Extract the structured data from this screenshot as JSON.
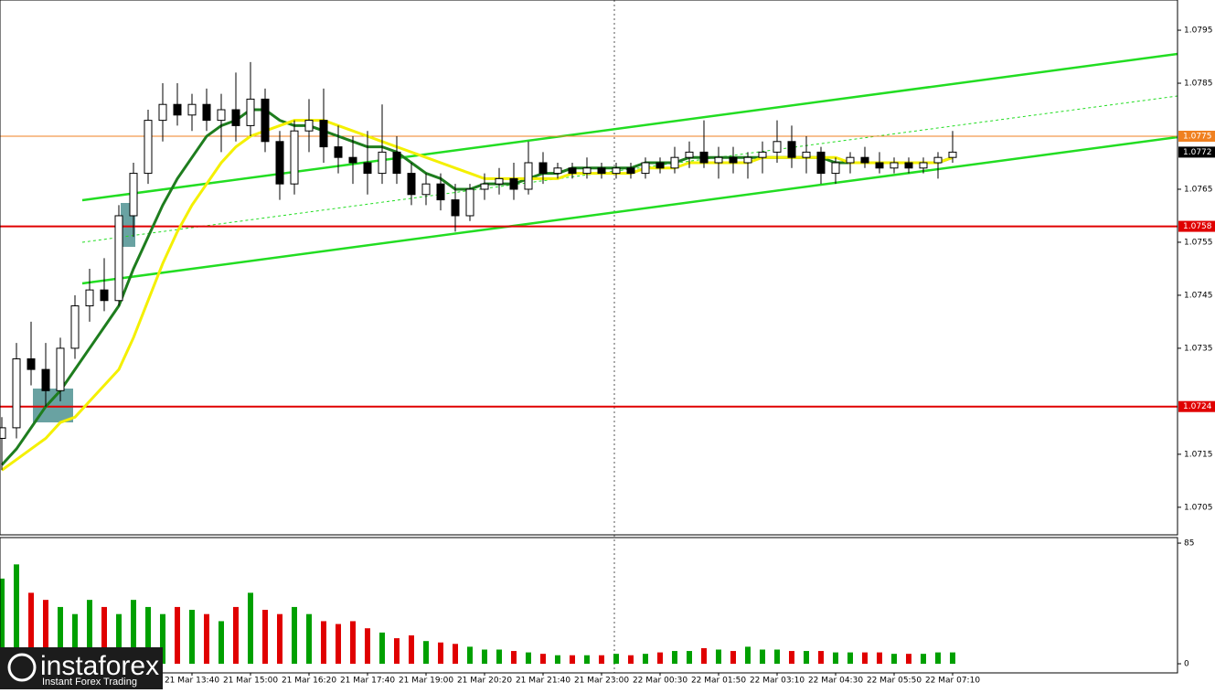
{
  "chart_data": {
    "type": "candlestick",
    "categories": [
      null,
      null,
      null,
      null,
      null,
      null,
      null,
      null,
      null,
      null,
      null,
      null,
      null,
      "21 Mar 13:40",
      null,
      null,
      null,
      "21 Mar 15:00",
      null,
      null,
      null,
      "21 Mar 16:20",
      null,
      null,
      null,
      "21 Mar 17:40",
      null,
      null,
      null,
      "21 Mar 19:00",
      null,
      null,
      null,
      "21 Mar 20:20",
      null,
      null,
      null,
      "21 Mar 21:40",
      null,
      null,
      null,
      "21 Mar 23:00",
      null,
      null,
      null,
      "22 Mar 00:30",
      null,
      null,
      null,
      "22 Mar 01:50",
      null,
      null,
      null,
      "22 Mar 03:10",
      null,
      null,
      null,
      "22 Mar 04:30",
      null,
      null,
      null,
      "22 Mar 05:50",
      null,
      null,
      null,
      "22 Mar 07:10"
    ],
    "open": [
      1.0718,
      1.072,
      1.0733,
      1.0731,
      1.0727,
      1.0735,
      1.0743,
      1.0746,
      1.0744,
      1.076,
      1.0768,
      1.0778,
      1.0781,
      1.0779,
      1.0781,
      1.0778,
      1.078,
      1.0777,
      1.0782,
      1.0774,
      1.0766,
      1.0776,
      1.0778,
      1.0773,
      1.0771,
      1.077,
      1.0768,
      1.0772,
      1.0768,
      1.0764,
      1.0766,
      1.0763,
      1.076,
      1.0765,
      1.0766,
      1.0767,
      1.0765,
      1.077,
      1.0768,
      1.0769,
      1.0768,
      1.0769,
      1.0768,
      1.0769,
      1.0768,
      1.077,
      1.0769,
      1.0771,
      1.0772,
      1.077,
      1.0771,
      1.077,
      1.0771,
      1.0772,
      1.0774,
      1.0771,
      1.0772,
      1.0768,
      1.077,
      1.0771,
      1.077,
      1.0769,
      1.077,
      1.0769,
      1.077,
      1.0771
    ],
    "high": [
      1.0722,
      1.0736,
      1.074,
      1.0736,
      1.0737,
      1.0745,
      1.075,
      1.0752,
      1.0762,
      1.077,
      1.078,
      1.0785,
      1.0785,
      1.0783,
      1.0784,
      1.0783,
      1.0787,
      1.0789,
      1.0784,
      1.0776,
      1.0778,
      1.0782,
      1.0784,
      1.0777,
      1.0775,
      1.0776,
      1.0781,
      1.0775,
      1.077,
      1.0768,
      1.0768,
      1.0766,
      1.0766,
      1.0768,
      1.0769,
      1.077,
      1.0774,
      1.0772,
      1.077,
      1.077,
      1.0771,
      1.077,
      1.077,
      1.077,
      1.0771,
      1.0771,
      1.0773,
      1.0774,
      1.0778,
      1.0773,
      1.0773,
      1.0772,
      1.0774,
      1.0778,
      1.0777,
      1.0775,
      1.0773,
      1.0771,
      1.0772,
      1.0773,
      1.0772,
      1.0771,
      1.0771,
      1.0771,
      1.0772,
      1.0776
    ],
    "low": [
      1.0712,
      1.0718,
      1.0728,
      1.0724,
      1.0725,
      1.0733,
      1.074,
      1.0742,
      1.0743,
      1.0756,
      1.0766,
      1.0774,
      1.0777,
      1.0776,
      1.0776,
      1.0772,
      1.0774,
      1.0775,
      1.0772,
      1.0763,
      1.0764,
      1.0772,
      1.077,
      1.0768,
      1.0766,
      1.0764,
      1.0766,
      1.0766,
      1.0762,
      1.0762,
      1.0761,
      1.0757,
      1.0759,
      1.0763,
      1.0764,
      1.0763,
      1.0764,
      1.0766,
      1.0767,
      1.0767,
      1.0767,
      1.0767,
      1.0767,
      1.0767,
      1.0767,
      1.0768,
      1.0768,
      1.0769,
      1.0769,
      1.0767,
      1.0768,
      1.0767,
      1.0768,
      1.077,
      1.0769,
      1.0768,
      1.0766,
      1.0766,
      1.0768,
      1.0769,
      1.0768,
      1.0768,
      1.0768,
      1.0768,
      1.0767,
      1.077
    ],
    "close": [
      1.072,
      1.0733,
      1.0731,
      1.0727,
      1.0735,
      1.0743,
      1.0746,
      1.0744,
      1.076,
      1.0768,
      1.0778,
      1.0781,
      1.0779,
      1.0781,
      1.0778,
      1.078,
      1.0777,
      1.0782,
      1.0774,
      1.0766,
      1.0776,
      1.0778,
      1.0773,
      1.0771,
      1.077,
      1.0768,
      1.0772,
      1.0768,
      1.0764,
      1.0766,
      1.0763,
      1.076,
      1.0765,
      1.0766,
      1.0767,
      1.0765,
      1.077,
      1.0768,
      1.0769,
      1.0768,
      1.0769,
      1.0768,
      1.0769,
      1.0768,
      1.077,
      1.0769,
      1.0771,
      1.0772,
      1.077,
      1.0771,
      1.077,
      1.0771,
      1.0772,
      1.0774,
      1.0771,
      1.0772,
      1.0768,
      1.077,
      1.0771,
      1.077,
      1.0769,
      1.077,
      1.0769,
      1.077,
      1.0771,
      1.0772
    ],
    "series": [
      {
        "color": "#1e7d1e",
        "values": [
          1.0713,
          1.0716,
          1.072,
          1.0724,
          1.0727,
          1.0731,
          1.0735,
          1.0739,
          1.0743,
          1.075,
          1.0756,
          1.0762,
          1.0767,
          1.0771,
          1.0775,
          1.0777,
          1.0778,
          1.078,
          1.078,
          1.0778,
          1.0777,
          1.0777,
          1.0776,
          1.0775,
          1.0774,
          1.0773,
          1.0773,
          1.0772,
          1.077,
          1.0768,
          1.0767,
          1.0765,
          1.0765,
          1.0766,
          1.0766,
          1.0766,
          1.0767,
          1.0768,
          1.0768,
          1.0769,
          1.0769,
          1.0769,
          1.0769,
          1.0769,
          1.077,
          1.077,
          1.077,
          1.0771,
          1.0771,
          1.0771,
          1.0771,
          1.0771,
          1.0771,
          1.0771,
          1.0771,
          1.0771,
          1.0771,
          1.077,
          1.077,
          1.077,
          1.077,
          1.077,
          1.077,
          1.077,
          1.077,
          1.0771
        ]
      },
      {
        "color": "#f4f000",
        "values": [
          1.0712,
          1.0714,
          1.0716,
          1.0718,
          1.0721,
          1.0722,
          1.0725,
          1.0728,
          1.0731,
          1.0737,
          1.0744,
          1.0751,
          1.0757,
          1.0762,
          1.0766,
          1.077,
          1.0773,
          1.0775,
          1.0776,
          1.0777,
          1.0778,
          1.0778,
          1.0778,
          1.0777,
          1.0776,
          1.0775,
          1.0774,
          1.0773,
          1.0772,
          1.0771,
          1.077,
          1.0769,
          1.0768,
          1.0767,
          1.0767,
          1.0767,
          1.0767,
          1.0767,
          1.0767,
          1.0768,
          1.0768,
          1.0768,
          1.0768,
          1.0768,
          1.0769,
          1.0769,
          1.0769,
          1.077,
          1.077,
          1.077,
          1.077,
          1.077,
          1.0771,
          1.0771,
          1.0771,
          1.0771,
          1.0771,
          1.0771,
          1.077,
          1.077,
          1.077,
          1.077,
          1.077,
          1.077,
          1.077,
          1.0771
        ]
      }
    ],
    "ylim": [
      1.06998,
      1.08007
    ],
    "yticks": [
      1.0795,
      1.0785,
      1.0765,
      1.0755,
      1.0745,
      1.0735,
      1.0715,
      1.0705
    ],
    "price_levels": [
      {
        "value": 1.0775,
        "color": "#f08020"
      },
      {
        "value": 1.0758,
        "color": "#e00000"
      },
      {
        "value": 1.0724,
        "color": "#e00000"
      }
    ],
    "current_price": 1.0772,
    "candle_colors": {
      "up": "#ffffff",
      "down": "#000000"
    },
    "volume": {
      "values": [
        60,
        70,
        50,
        45,
        40,
        35,
        45,
        40,
        35,
        45,
        40,
        35,
        40,
        38,
        35,
        30,
        40,
        50,
        38,
        35,
        40,
        35,
        30,
        28,
        30,
        25,
        22,
        18,
        20,
        16,
        15,
        14,
        12,
        10,
        10,
        9,
        8,
        7,
        6,
        6,
        6,
        6,
        7,
        6,
        7,
        8,
        9,
        9,
        11,
        10,
        9,
        12,
        10,
        10,
        9,
        9,
        9,
        8,
        8,
        8,
        8,
        7,
        7,
        7,
        8,
        8
      ],
      "ylim": [
        -9,
        88.9
      ],
      "yticks": [
        85,
        0
      ],
      "colors": {
        "up": "#00a000",
        "down": "#e00000"
      }
    }
  },
  "logo": {
    "name": "instaforex",
    "tagline": "Instant Forex Trading"
  }
}
